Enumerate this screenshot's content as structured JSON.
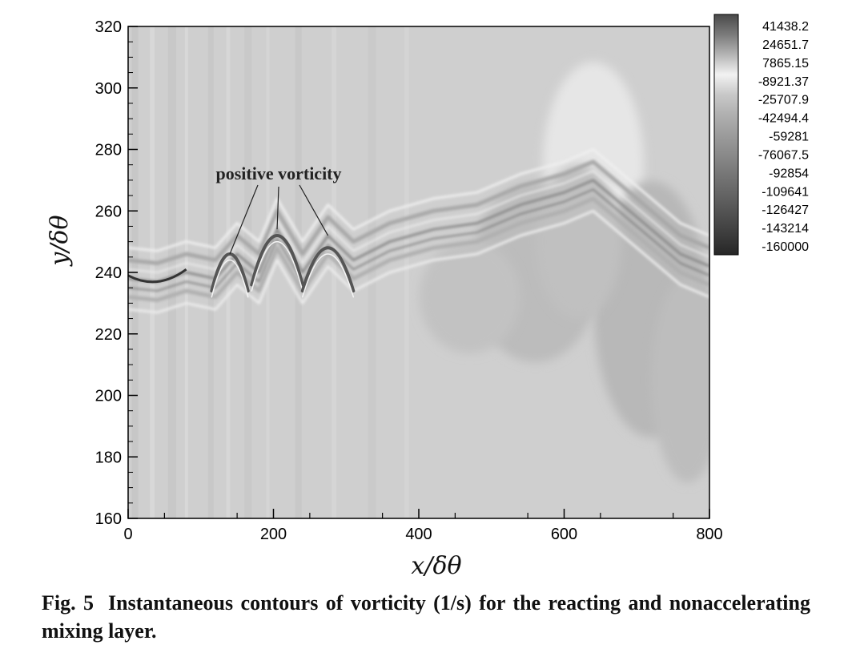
{
  "chart_data": {
    "type": "heatmap",
    "title": "",
    "xlabel": "x/δθ",
    "ylabel": "y/δθ",
    "xlim": [
      0,
      800
    ],
    "ylim": [
      160,
      320
    ],
    "x_ticks": [
      "0",
      "200",
      "400",
      "600",
      "800"
    ],
    "y_ticks": [
      "160",
      "180",
      "200",
      "220",
      "240",
      "260",
      "280",
      "300",
      "320"
    ],
    "colorbar": {
      "labels": [
        "41438.2",
        "24651.7",
        "7865.15",
        "-8921.37",
        "-25707.9",
        "-42494.4",
        "-59281",
        "-76067.5",
        "-92854",
        "-109641",
        "-126427",
        "-143214",
        "-160000"
      ],
      "colormap": "grayscale",
      "colors": [
        "#4a4a4a",
        "#7a7a7a",
        "#b4b4b4",
        "#f2f2f2",
        "#c8c8c8",
        "#b0b0b0",
        "#9c9c9c",
        "#8a8a8a",
        "#767676",
        "#646464",
        "#505050",
        "#3c3c3c",
        "#262626"
      ]
    },
    "background_level": "#cfcfcf",
    "annotation": {
      "text": "positive vorticity",
      "targets_x": [
        140,
        205,
        275
      ]
    },
    "shear_layer_centerline": [
      [
        0,
        238
      ],
      [
        40,
        237
      ],
      [
        80,
        240
      ],
      [
        120,
        238
      ],
      [
        150,
        246
      ],
      [
        180,
        240
      ],
      [
        205,
        254
      ],
      [
        240,
        240
      ],
      [
        275,
        252
      ],
      [
        310,
        244
      ],
      [
        360,
        250
      ],
      [
        420,
        254
      ],
      [
        480,
        256
      ],
      [
        540,
        262
      ],
      [
        600,
        266
      ],
      [
        640,
        270
      ],
      [
        700,
        258
      ],
      [
        760,
        246
      ],
      [
        800,
        242
      ]
    ]
  },
  "caption": {
    "figure_number": "Fig. 5",
    "text": "Instantaneous contours of vorticity (1/s) for the reacting and nonaccelerating mixing layer."
  }
}
